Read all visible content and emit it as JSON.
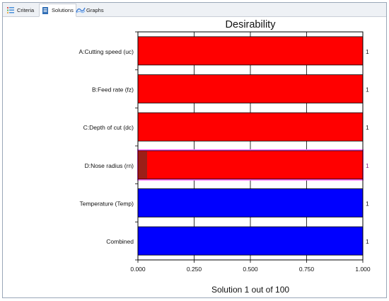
{
  "tabs": [
    {
      "label": "Criteria",
      "icon": "criteria-icon"
    },
    {
      "label": "Solutions",
      "icon": "solutions-icon",
      "active": true
    },
    {
      "label": "Graphs",
      "icon": "graphs-icon"
    }
  ],
  "footer": "Solution 1 out of 100",
  "chart_data": {
    "type": "bar",
    "orientation": "horizontal",
    "title": "Desirability",
    "xlim": [
      0,
      1
    ],
    "xticks": [
      "0.000",
      "0.250",
      "0.500",
      "0.750",
      "1.000"
    ],
    "xtick_values": [
      0,
      0.25,
      0.5,
      0.75,
      1.0
    ],
    "grid": "vertical",
    "categories": [
      "A:Cutting speed (uc)",
      "B:Feed rate (fz)",
      "C:Depth of cut (dc)",
      "D:Nose radius (rn)",
      "Temperature (Temp)",
      "Combined"
    ],
    "values": [
      1,
      1,
      1,
      1,
      1,
      1
    ],
    "value_labels": [
      "1",
      "1",
      "1",
      "1",
      "1",
      "1"
    ],
    "bar_colors": [
      "#ff0000",
      "#ff0000",
      "#ff0000",
      "#ff0000",
      "#0000ff",
      "#0000ff"
    ],
    "highlighted_category": "D:Nose radius (rn)",
    "highlight_color": "#ff66ff"
  }
}
